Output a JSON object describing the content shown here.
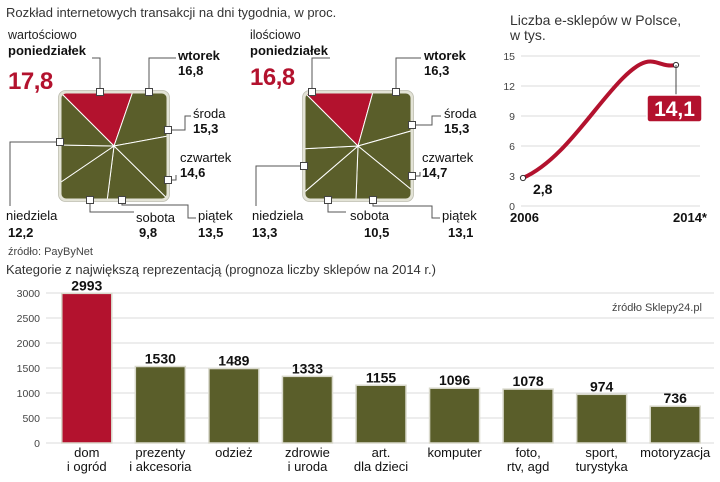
{
  "colors": {
    "accent": "#b3122e",
    "olive": "#5a5e2a",
    "grid": "#cfcfcf"
  },
  "top_title": "Rozkład internetowych transakcji na dni tygodnia, w proc.",
  "source_top": "źródło: PayByNet",
  "bottom_title": "Kategorie z największą reprezentacją (prognoza liczby sklepów na 2014 r.)",
  "chart_data": [
    {
      "type": "pie",
      "title": "wartościowo",
      "categories": [
        "poniedziałek",
        "wtorek",
        "środa",
        "czwartek",
        "piątek",
        "sobota",
        "niedziela"
      ],
      "values": [
        17.8,
        16.8,
        15.3,
        14.6,
        13.5,
        9.8,
        12.2
      ],
      "value_labels": [
        "17,8",
        "16,8",
        "15,3",
        "14,6",
        "13,5",
        "9,8",
        "12,2"
      ],
      "highlight": "poniedziałek"
    },
    {
      "type": "pie",
      "title": "ilościowo",
      "categories": [
        "poniedziałek",
        "wtorek",
        "środa",
        "czwartek",
        "piątek",
        "sobota",
        "niedziela"
      ],
      "values": [
        16.8,
        16.3,
        15.3,
        14.7,
        13.1,
        10.5,
        13.3
      ],
      "value_labels": [
        "16,8",
        "16,3",
        "15,3",
        "14,7",
        "13,1",
        "10,5",
        "13,3"
      ],
      "highlight": "poniedziałek"
    },
    {
      "type": "line",
      "title": "Liczba e-sklepów w Polsce,\nw tys.",
      "x_labels": [
        "2006",
        "2014*"
      ],
      "x": [
        2006,
        2014
      ],
      "values": [
        2.8,
        14.1
      ],
      "value_labels": [
        "2,8",
        "14,1"
      ],
      "yticks": [
        "15",
        "12",
        "9",
        "6",
        "3",
        "0"
      ],
      "ylim": [
        0,
        15
      ]
    },
    {
      "type": "bar",
      "title": "Kategorie z największą reprezentacją (prognoza liczby sklepów na 2014 r.)",
      "categories": [
        "dom\ni ogród",
        "prezenty\ni akcesoria",
        "odzież",
        "zdrowie\ni uroda",
        "art.\ndla dzieci",
        "komputer",
        "foto,\nrtv, agd",
        "sport,\nturystyka",
        "motoryzacja"
      ],
      "values": [
        2993,
        1530,
        1489,
        1333,
        1155,
        1096,
        1078,
        974,
        736
      ],
      "value_labels": [
        "2993",
        "1530",
        "1489",
        "1333",
        "1155",
        "1096",
        "1078",
        "974",
        "736"
      ],
      "yticks": [
        "3000",
        "2500",
        "2000",
        "1500",
        "1000",
        "500",
        "0"
      ],
      "ylim": [
        0,
        3000
      ],
      "highlight_index": 0,
      "source": "źródło Sklepy24.pl"
    }
  ]
}
